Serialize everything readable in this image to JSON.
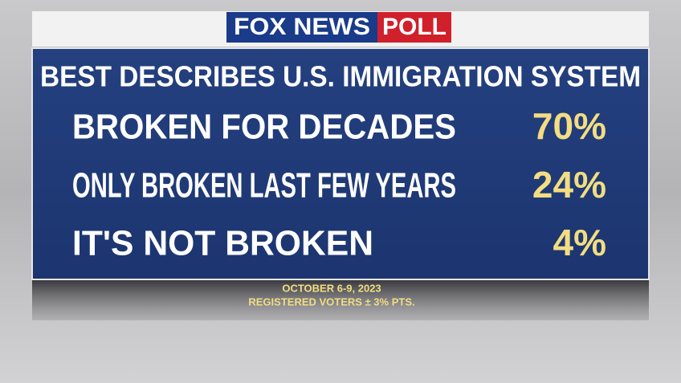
{
  "logo": {
    "brand": "FOX NEWS",
    "label": "POLL"
  },
  "title": "BEST DESCRIBES U.S. IMMIGRATION SYSTEM",
  "rows": [
    {
      "label": "BROKEN FOR DECADES",
      "value": "70%"
    },
    {
      "label": "ONLY BROKEN LAST FEW YEARS",
      "value": "24%"
    },
    {
      "label": "IT'S NOT BROKEN",
      "value": "4%"
    }
  ],
  "footer": {
    "date": "OCTOBER 6-9, 2023",
    "sample": "REGISTERED VOTERS ± 3% PTS."
  }
}
